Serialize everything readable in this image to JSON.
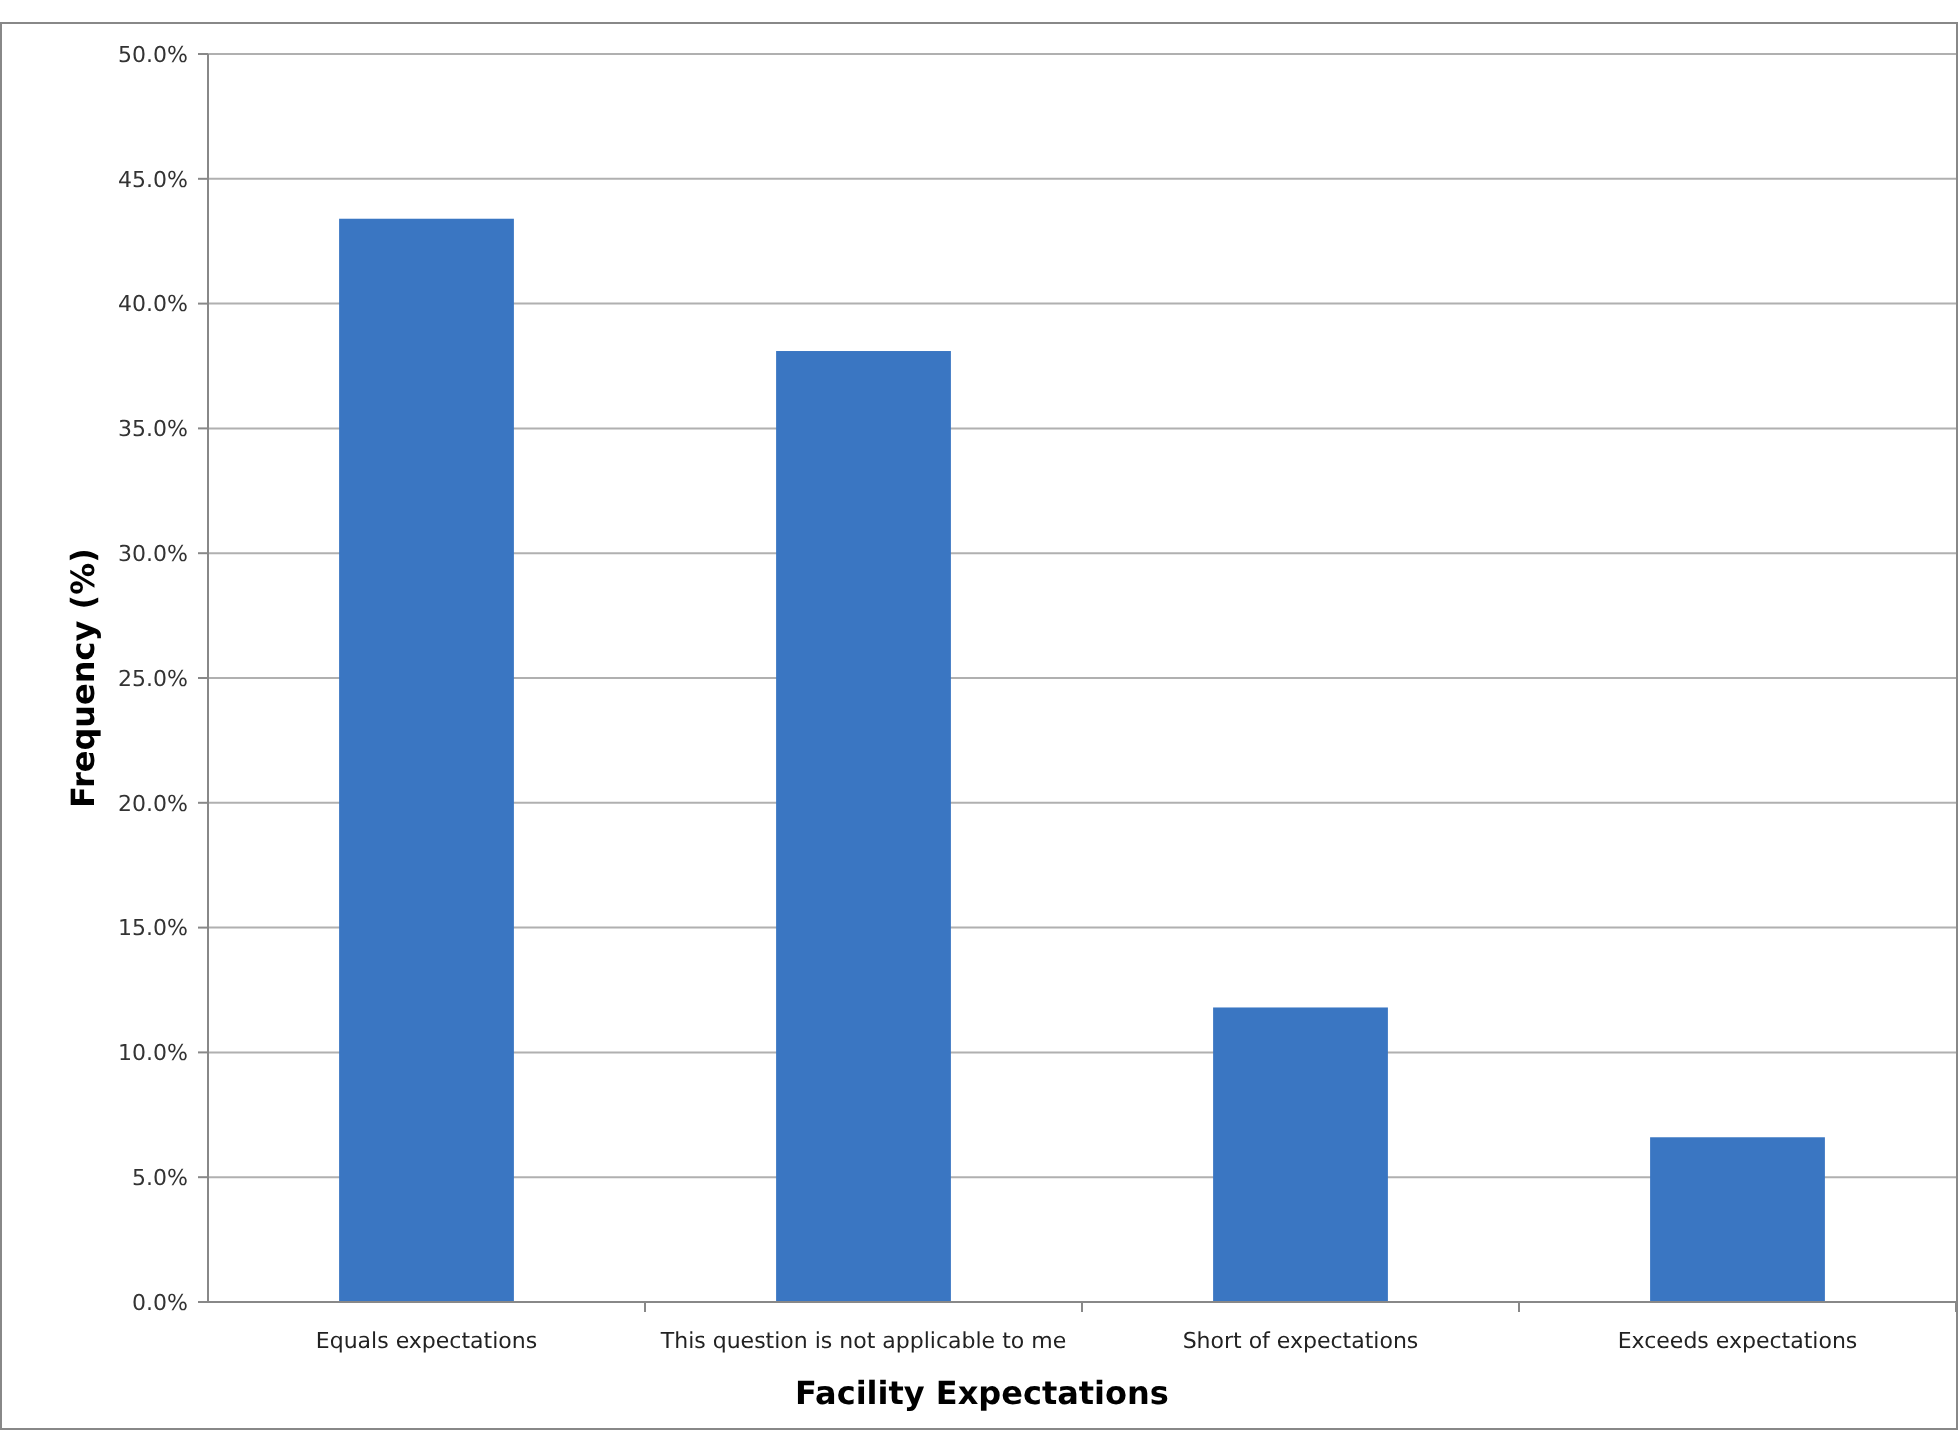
{
  "chart_data": {
    "type": "bar",
    "xlabel": "Facility Expectations",
    "ylabel": "Frequency (%)",
    "categories": [
      "Equals expectations",
      "This question is not applicable to me",
      "Short of expectations",
      "Exceeds expectations"
    ],
    "values": [
      43.4,
      38.1,
      11.8,
      6.6
    ],
    "color": "#3a76c2",
    "ylim": [
      0,
      50
    ],
    "yticks": [
      {
        "value": 0,
        "label": "0.0%"
      },
      {
        "value": 5,
        "label": "5.0%"
      },
      {
        "value": 10,
        "label": "10.0%"
      },
      {
        "value": 15,
        "label": "15.0%"
      },
      {
        "value": 20,
        "label": "20.0%"
      },
      {
        "value": 25,
        "label": "25.0%"
      },
      {
        "value": 30,
        "label": "30.0%"
      },
      {
        "value": 35,
        "label": "35.0%"
      },
      {
        "value": 40,
        "label": "40.0%"
      },
      {
        "value": 45,
        "label": "45.0%"
      },
      {
        "value": 50,
        "label": "50.0%"
      }
    ],
    "grid": "y"
  }
}
